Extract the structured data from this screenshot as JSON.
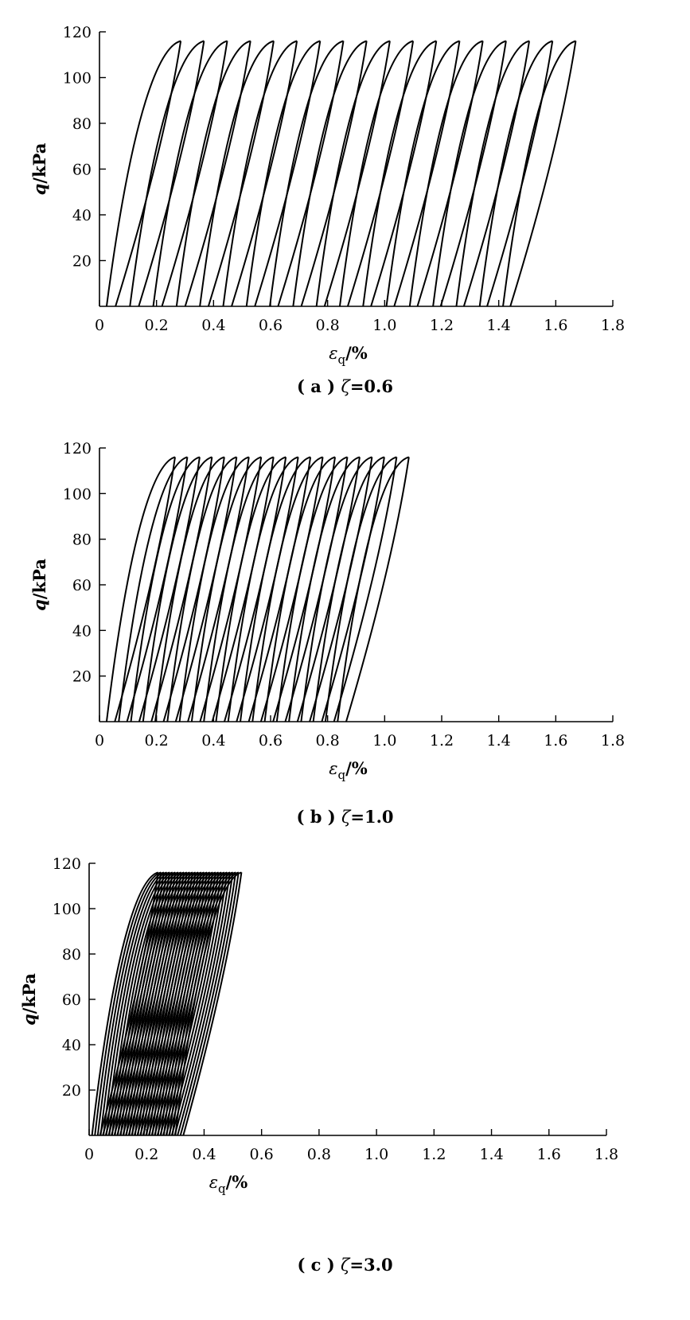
{
  "chart_data": [
    {
      "type": "line",
      "xlabel_symbol": "ε",
      "xlabel_subscript": "q",
      "xlabel_unit": "/%",
      "ylabel_symbol": "q",
      "ylabel_unit": "/kPa",
      "xlim": [
        0,
        1.8
      ],
      "ylim": [
        0,
        120
      ],
      "x_ticks": [
        "0",
        "0.2",
        "0.4",
        "0.6",
        "0.8",
        "1.0",
        "1.2",
        "1.4",
        "1.6",
        "1.8"
      ],
      "y_ticks": [
        "20",
        "40",
        "60",
        "80",
        "100",
        "120"
      ],
      "caption_prefix": "( a )",
      "caption_symbol": "ζ",
      "caption_value": "=0.6",
      "q_max": 116,
      "cycles": 18,
      "loop_start_strain_first": 0.025,
      "loop_start_strain_last": 1.415,
      "peak_strain_first": 0.285,
      "peak_strain_last": 1.67,
      "unload_end_strain_first": 0.025,
      "unload_end_strain_last": 1.41,
      "lines": "black",
      "grid": false
    },
    {
      "type": "line",
      "xlabel_symbol": "ε",
      "xlabel_subscript": "q",
      "xlabel_unit": "/%",
      "ylabel_symbol": "q",
      "ylabel_unit": "/kPa",
      "xlim": [
        0,
        1.8
      ],
      "ylim": [
        0,
        120
      ],
      "x_ticks": [
        "0",
        "0.2",
        "0.4",
        "0.6",
        "0.8",
        "1.0",
        "1.2",
        "1.4",
        "1.6",
        "1.8"
      ],
      "y_ticks": [
        "20",
        "40",
        "60",
        "80",
        "100",
        "120"
      ],
      "caption_prefix": "( b )",
      "caption_symbol": "ζ",
      "caption_value": "=1.0",
      "q_max": 116,
      "cycles": 20,
      "loop_start_strain_first": 0.025,
      "loop_start_strain_last": 0.835,
      "peak_strain_first": 0.265,
      "peak_strain_last": 1.085,
      "unload_end_strain_first": 0.025,
      "unload_end_strain_last": 0.835,
      "lines": "black",
      "grid": false
    },
    {
      "type": "line",
      "xlabel_symbol": "ε",
      "xlabel_subscript": "q",
      "xlabel_unit": "/%",
      "ylabel_symbol": "q",
      "ylabel_unit": "/kPa",
      "xlim": [
        0,
        1.8
      ],
      "ylim": [
        0,
        120
      ],
      "x_ticks": [
        "0",
        "0.2",
        "0.4",
        "0.6",
        "0.8",
        "1.0",
        "1.2",
        "1.4",
        "1.6",
        "1.8"
      ],
      "y_ticks": [
        "20",
        "40",
        "60",
        "80",
        "100",
        "120"
      ],
      "caption_prefix": "( c )",
      "caption_symbol": "ζ",
      "caption_value": "=3.0",
      "q_max": 116,
      "cycles": 30,
      "loop_start_strain_first": 0.01,
      "loop_start_strain_last": 0.3,
      "peak_strain_first": 0.24,
      "peak_strain_last": 0.53,
      "unload_end_strain_first": 0.01,
      "unload_end_strain_last": 0.3,
      "lines": "black",
      "grid": false
    }
  ]
}
